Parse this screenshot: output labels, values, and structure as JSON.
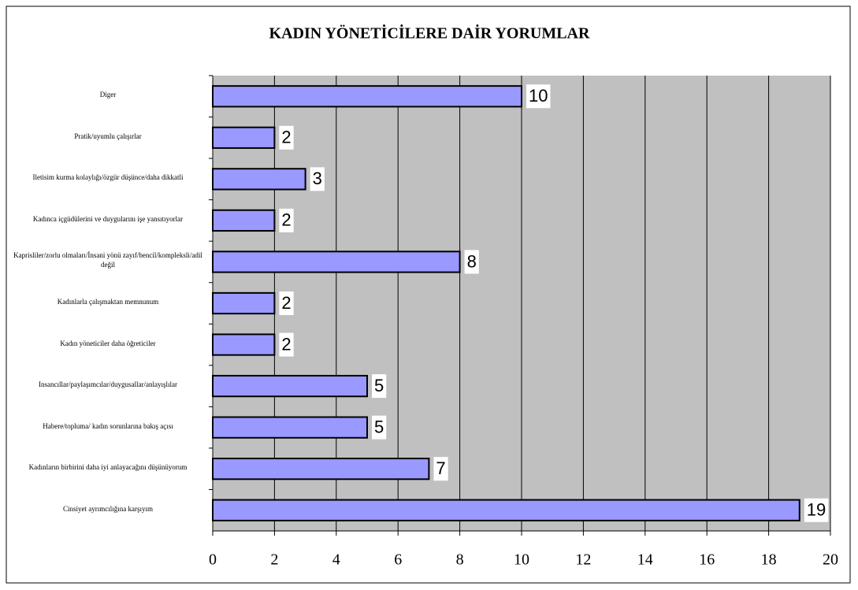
{
  "chart_data": {
    "type": "barh",
    "title": "KADIN YÖNETİCİLERE DAİR YORUMLAR",
    "categories": [
      "Diger",
      "Pratik/uyumlu çalışırlar",
      "Iletisim kurma kolaylığı/özgür düşünce/daha dikkatli",
      "Kadınca içgüdülerini ve duygularını işe yansıtıyorlar",
      "Kaprisliler/zorlu olmaları/İnsani yönü zayıf/bencil/kompleksli/adil değil",
      "Kadınlarla çalışmaktan memnunum",
      "Kadın yöneticiler daha öğreticiler",
      "Insancıllar/paylaşımcılar/duygusallar/anlayışlılar",
      "Habere/topluma/ kadın sorunlarına bakış açısı",
      "Kadınların birbirini daha iyi anlayacağını düşünüyorum",
      "Cinsiyet ayrımcılığına karşıyım"
    ],
    "values": [
      10,
      2,
      3,
      2,
      8,
      2,
      2,
      5,
      5,
      7,
      19
    ],
    "color": "#9999ff",
    "xlim": [
      0,
      20
    ],
    "xticks": [
      0,
      2,
      4,
      6,
      8,
      10,
      12,
      14,
      16,
      18,
      20
    ],
    "grid": true
  }
}
